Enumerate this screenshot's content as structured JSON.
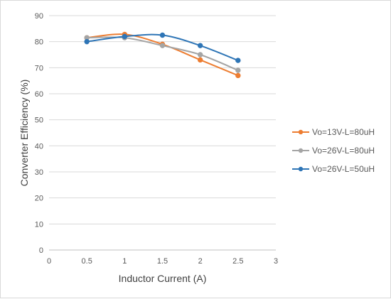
{
  "chart_data": {
    "type": "line",
    "title": "",
    "xlabel": "Inductor Current (A)",
    "ylabel": "Converter Efficiency (%)",
    "xlim": [
      0,
      3
    ],
    "ylim": [
      0,
      90
    ],
    "x_ticks": [
      "0",
      "0.5",
      "1",
      "1.5",
      "2",
      "2.5",
      "3"
    ],
    "y_ticks": [
      "0",
      "10",
      "20",
      "30",
      "40",
      "50",
      "60",
      "70",
      "80",
      "90"
    ],
    "grid": "horizontal",
    "legend_position": "right",
    "smooth": true,
    "series": [
      {
        "name": "Vo=13V-L=80uH",
        "color": "#ED7D31",
        "x": [
          0.5,
          1,
          1.5,
          2,
          2.5
        ],
        "y": [
          81.5,
          82.8,
          79.0,
          73.0,
          67.0
        ]
      },
      {
        "name": "Vo=26V-L=80uH",
        "color": "#A5A5A5",
        "x": [
          0.5,
          1,
          1.5,
          2,
          2.5
        ],
        "y": [
          81.5,
          81.5,
          78.5,
          75.0,
          69.0
        ]
      },
      {
        "name": "Vo=26V-L=50uH",
        "color": "#2E75B6",
        "x": [
          0.5,
          1,
          1.5,
          2,
          2.5
        ],
        "y": [
          80.0,
          82.0,
          82.5,
          78.5,
          72.8
        ]
      }
    ]
  }
}
